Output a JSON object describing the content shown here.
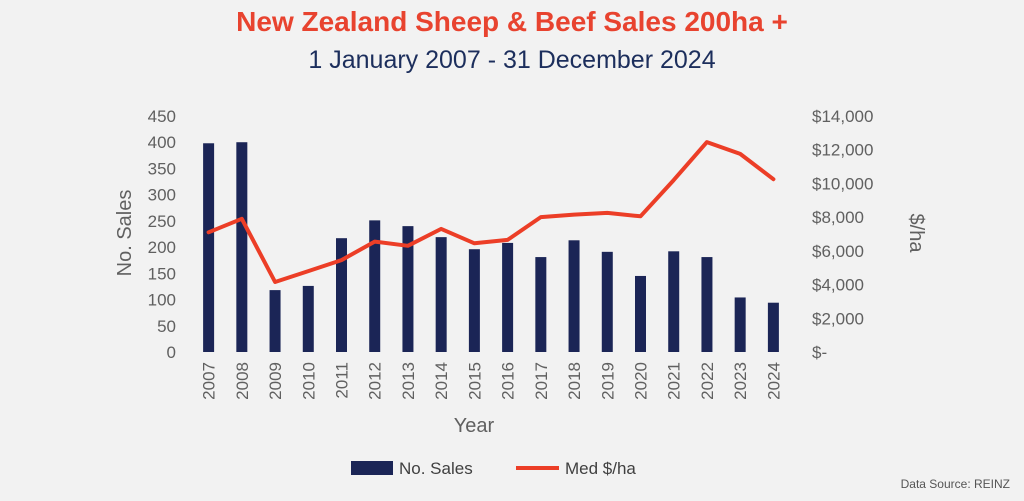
{
  "chart_data": {
    "type": "bar",
    "title": "New Zealand Sheep & Beef Sales 200ha +",
    "subtitle": "1 January 2007 - 31 December 2024",
    "xlabel": "Year",
    "ylabel": "No. Sales",
    "y2label": "$/ha",
    "ylim": [
      0,
      450
    ],
    "y2lim": [
      0,
      14000
    ],
    "yticks": [
      "0",
      "50",
      "100",
      "150",
      "200",
      "250",
      "300",
      "350",
      "400",
      "450"
    ],
    "y2ticks": [
      "$-",
      "$2,000",
      "$4,000",
      "$6,000",
      "$8,000",
      "$10,000",
      "$12,000",
      "$14,000"
    ],
    "categories": [
      "2007",
      "2008",
      "2009",
      "2010",
      "2011",
      "2012",
      "2013",
      "2014",
      "2015",
      "2016",
      "2017",
      "2018",
      "2019",
      "2020",
      "2021",
      "2022",
      "2023",
      "2024"
    ],
    "series": [
      {
        "name": "No. Sales",
        "type": "bar",
        "axis": "left",
        "values": [
          398,
          400,
          118,
          126,
          217,
          251,
          240,
          219,
          196,
          208,
          181,
          213,
          191,
          145,
          192,
          181,
          104,
          94
        ]
      },
      {
        "name": "Med $/ha",
        "type": "line",
        "axis": "right",
        "values": [
          7100,
          7900,
          4150,
          4800,
          5450,
          6550,
          6300,
          7300,
          6450,
          6650,
          8000,
          8150,
          8250,
          8050,
          10200,
          12450,
          11750,
          10250
        ]
      }
    ],
    "legend": "bottom",
    "grid": false
  },
  "source": "Data Source: REINZ",
  "colors": {
    "title": "#e8432f",
    "subtitle": "#1c2e5c",
    "bar": "#1b2556",
    "line": "#ec3e27"
  }
}
